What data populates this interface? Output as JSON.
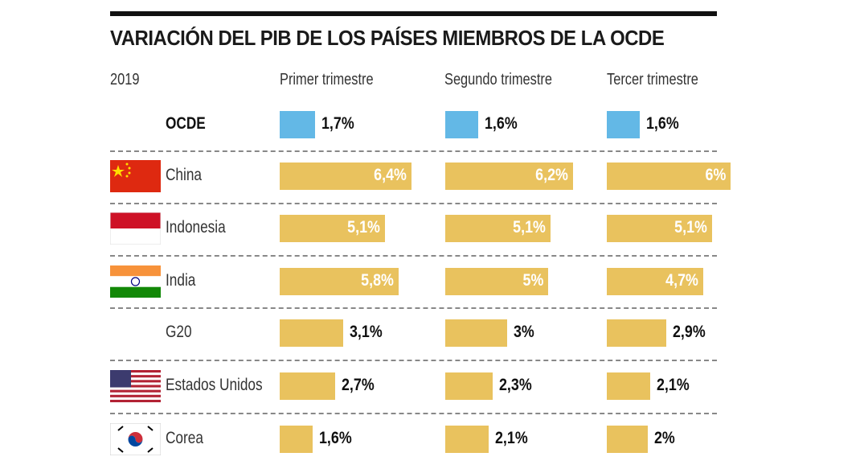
{
  "chart_data": {
    "type": "bar",
    "title": "VARIACIÓN DEL PIB DE LOS PAÍSES MIEMBROS DE LA OCDE",
    "year_label": "2019",
    "columns": [
      "Primer trimestre",
      "Segundo trimestre",
      "Tercer trimestre"
    ],
    "unit": "%",
    "rows": [
      {
        "name": "OCDE",
        "flag": "none",
        "highlight": true,
        "values": [
          1.7,
          1.6,
          1.6
        ],
        "labels": [
          "1,7%",
          "1,6%",
          "1,6%"
        ]
      },
      {
        "name": "China",
        "flag": "china-flag",
        "values": [
          6.4,
          6.2,
          6.0
        ],
        "labels": [
          "6,4%",
          "6,2%",
          "6%"
        ]
      },
      {
        "name": "Indonesia",
        "flag": "indonesia-flag",
        "values": [
          5.1,
          5.1,
          5.1
        ],
        "labels": [
          "5,1%",
          "5,1%",
          "5,1%"
        ]
      },
      {
        "name": "India",
        "flag": "india-flag",
        "values": [
          5.8,
          5.0,
          4.7
        ],
        "labels": [
          "5,8%",
          "5%",
          "4,7%"
        ]
      },
      {
        "name": "G20",
        "flag": "none",
        "values": [
          3.1,
          3.0,
          2.9
        ],
        "labels": [
          "3,1%",
          "3%",
          "2,9%"
        ]
      },
      {
        "name": "Estados Unidos",
        "flag": "usa-flag",
        "values": [
          2.7,
          2.3,
          2.1
        ],
        "labels": [
          "2,7%",
          "2,3%",
          "2,1%"
        ]
      },
      {
        "name": "Corea",
        "flag": "korea-flag",
        "values": [
          1.6,
          2.1,
          2.0
        ],
        "labels": [
          "1,6%",
          "2,1%",
          "2%"
        ]
      }
    ],
    "colors": {
      "ocde": "#63b8e6",
      "countries": "#e9c25e",
      "title_rule": "#111111"
    }
  }
}
